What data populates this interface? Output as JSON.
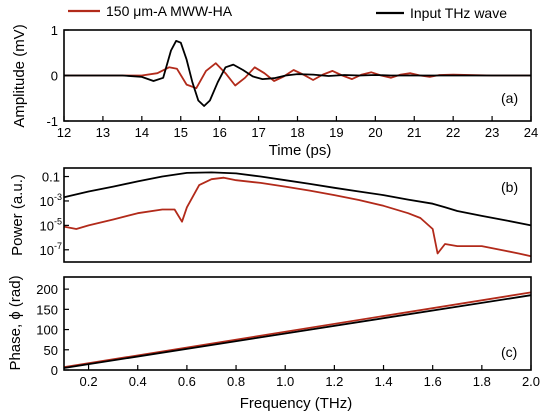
{
  "colors": {
    "sample": "#b22a1a",
    "reference": "#000000",
    "axis": "#000000"
  },
  "legend": {
    "sample_label": "150 μm-A MWW-HA",
    "reference_label": "Input THz wave"
  },
  "chart_data": [
    {
      "panel": "(a)",
      "type": "line",
      "xlabel": "Time (ps)",
      "ylabel": "Amplitude (mV)",
      "xlim": [
        12,
        24
      ],
      "ylim": [
        -1,
        1
      ],
      "xticks": [
        12,
        13,
        14,
        15,
        16,
        17,
        18,
        19,
        20,
        21,
        22,
        23,
        24
      ],
      "yticks": [
        -1,
        0,
        1
      ],
      "series": [
        {
          "name": "Input THz wave",
          "color": "#000000",
          "x": [
            12,
            13.5,
            14.0,
            14.3,
            14.55,
            14.75,
            14.88,
            15.0,
            15.15,
            15.3,
            15.45,
            15.6,
            15.75,
            15.95,
            16.15,
            16.35,
            16.6,
            16.85,
            17.1,
            17.4,
            17.7,
            18.0,
            18.4,
            18.8,
            19.2,
            19.6,
            20.0,
            20.4,
            21.0,
            22.0,
            24
          ],
          "y": [
            0,
            0,
            -0.03,
            -0.12,
            -0.05,
            0.55,
            0.76,
            0.72,
            0.35,
            -0.15,
            -0.55,
            -0.67,
            -0.55,
            -0.15,
            0.18,
            0.24,
            0.12,
            -0.02,
            -0.08,
            -0.06,
            0.0,
            0.03,
            0.02,
            -0.01,
            0.01,
            0.0,
            0.01,
            0.0,
            0.0,
            0.0,
            0
          ]
        },
        {
          "name": "150 μm-A MWW-HA",
          "color": "#b22a1a",
          "x": [
            12,
            14.0,
            14.4,
            14.7,
            14.9,
            15.15,
            15.4,
            15.65,
            15.9,
            16.15,
            16.4,
            16.65,
            16.9,
            17.15,
            17.4,
            17.65,
            17.9,
            18.15,
            18.4,
            18.65,
            18.9,
            19.15,
            19.4,
            19.65,
            19.9,
            20.15,
            20.4,
            20.65,
            20.9,
            21.15,
            21.4,
            21.65,
            22.0,
            23.0,
            24
          ],
          "y": [
            0,
            0,
            0.05,
            0.18,
            0.15,
            -0.2,
            -0.28,
            0.1,
            0.27,
            0.05,
            -0.22,
            -0.05,
            0.18,
            0.05,
            -0.12,
            -0.02,
            0.12,
            0.02,
            -0.1,
            0.02,
            0.1,
            0.0,
            -0.08,
            0.02,
            0.07,
            0.0,
            -0.05,
            0.02,
            0.05,
            0.0,
            -0.03,
            0.01,
            0.02,
            0.0,
            0
          ]
        }
      ]
    },
    {
      "panel": "(b)",
      "type": "line",
      "xlabel": "",
      "ylabel": "Power (a.u.)",
      "xlim": [
        0.1,
        2.0
      ],
      "ylim": [
        1e-08,
        0.5
      ],
      "yscale": "log",
      "ytick_values": [
        0.1,
        0.001,
        1e-05,
        1e-07
      ],
      "ytick_labels": [
        "0.1",
        "10",
        "10",
        "10"
      ],
      "ytick_exponents": [
        "",
        "-3",
        "-5",
        "-7"
      ],
      "series": [
        {
          "name": "Input THz wave",
          "color": "#000000",
          "x": [
            0.1,
            0.2,
            0.3,
            0.4,
            0.5,
            0.6,
            0.7,
            0.8,
            0.9,
            1.0,
            1.1,
            1.2,
            1.3,
            1.4,
            1.5,
            1.6,
            1.65,
            1.7,
            1.8,
            1.9,
            2.0
          ],
          "y": [
            0.002,
            0.006,
            0.015,
            0.04,
            0.1,
            0.2,
            0.22,
            0.18,
            0.1,
            0.05,
            0.025,
            0.012,
            0.006,
            0.003,
            0.0013,
            0.0006,
            0.0003,
            0.00015,
            6e-05,
            2.5e-05,
            1e-05
          ]
        },
        {
          "name": "150 μm-A MWW-HA",
          "color": "#b22a1a",
          "x": [
            0.1,
            0.15,
            0.2,
            0.3,
            0.4,
            0.5,
            0.55,
            0.58,
            0.6,
            0.65,
            0.7,
            0.75,
            0.8,
            0.9,
            1.0,
            1.1,
            1.2,
            1.3,
            1.4,
            1.5,
            1.55,
            1.6,
            1.62,
            1.65,
            1.7,
            1.8,
            1.9,
            1.95,
            2.0
          ],
          "y": [
            8e-06,
            5e-06,
            1e-05,
            3e-05,
            0.0001,
            0.0002,
            0.0002,
            2e-05,
            0.0003,
            0.02,
            0.06,
            0.08,
            0.05,
            0.03,
            0.015,
            0.007,
            0.003,
            0.0012,
            0.0004,
            0.0001,
            4e-05,
            5e-06,
            5e-08,
            3e-07,
            2e-07,
            2e-07,
            8e-08,
            5e-08,
            3e-08
          ]
        }
      ]
    },
    {
      "panel": "(c)",
      "type": "line",
      "xlabel": "Frequency (THz)",
      "ylabel": "Phase, ϕ (rad)",
      "xlim": [
        0.1,
        2.0
      ],
      "ylim": [
        0,
        230
      ],
      "xticks": [
        0.2,
        0.4,
        0.6,
        0.8,
        1.0,
        1.2,
        1.4,
        1.6,
        1.8,
        2.0
      ],
      "xtick_labels": [
        "0.2",
        "0.4",
        "0.6",
        "0.8",
        "1.0",
        "1.2",
        "1.4",
        "1.6",
        "1.8",
        "2.0"
      ],
      "yticks": [
        0,
        50,
        100,
        150,
        200
      ],
      "series": [
        {
          "name": "Input THz wave",
          "color": "#000000",
          "x": [
            0.1,
            2.0
          ],
          "y": [
            5,
            185
          ]
        },
        {
          "name": "150 μm-A MWW-HA",
          "color": "#b22a1a",
          "x": [
            0.1,
            2.0
          ],
          "y": [
            7,
            192
          ]
        }
      ]
    }
  ]
}
